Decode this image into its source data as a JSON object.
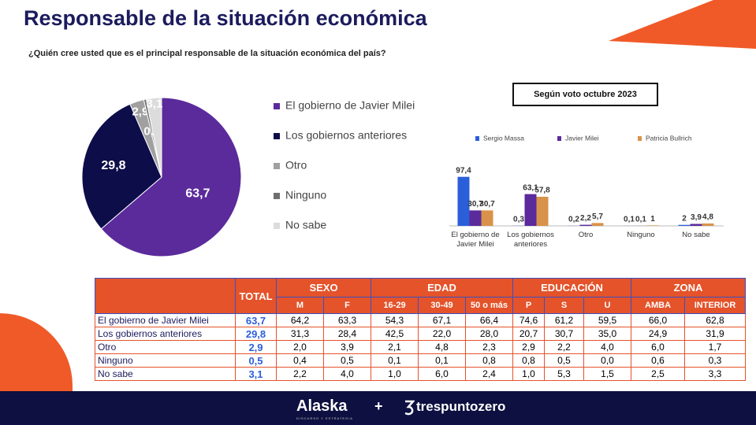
{
  "header": {
    "title": "Responsable de la situación económica",
    "subtitle": "¿Quién cree usted que es el principal responsable de la situación económica del país?"
  },
  "chart_data": [
    {
      "type": "pie",
      "categories": [
        "El gobierno de Javier Milei",
        "Los gobiernos anteriores",
        "Otro",
        "Ninguno",
        "No sabe"
      ],
      "values": [
        63.7,
        29.8,
        2.9,
        0.5,
        3.1
      ],
      "value_labels": [
        "63,7",
        "29,8",
        "2,9",
        "0,5",
        "3,1"
      ],
      "colors": [
        "#5b2a9b",
        "#0d0d4a",
        "#a0a0a0",
        "#6e6e6e",
        "#dcdcdc"
      ]
    },
    {
      "type": "bar",
      "title": "Según voto octubre 2023",
      "categories": [
        "El gobierno de Javier Milei",
        "Los gobiernos anteriores",
        "Otro",
        "Ninguno",
        "No sabe"
      ],
      "series": [
        {
          "name": "Sergio Massa",
          "color": "#2b5fd9",
          "values": [
            97.4,
            0.3,
            0.2,
            0.1,
            2
          ],
          "value_labels": [
            "97,4",
            "0,3",
            "0,2",
            "0,1",
            "2"
          ]
        },
        {
          "name": "Javier Milei",
          "color": "#5b2a9b",
          "values": [
            30.7,
            63.1,
            2.2,
            0.1,
            3.9
          ],
          "value_labels": [
            "30,7",
            "63,1",
            "2,2",
            "0,1",
            "3,9"
          ]
        },
        {
          "name": "Patricia Bullrich",
          "color": "#d9924a",
          "values": [
            30.7,
            57.8,
            5.7,
            1,
            4.8
          ],
          "value_labels": [
            "30,7",
            "57,8",
            "5,7",
            "1",
            "4,8"
          ]
        }
      ]
    }
  ],
  "table": {
    "groups": [
      "TOTAL",
      "SEXO",
      "EDAD",
      "EDUCACIÓN",
      "ZONA"
    ],
    "subheaders": [
      "M",
      "F",
      "16-29",
      "30-49",
      "50 o más",
      "P",
      "S",
      "U",
      "AMBA",
      "INTERIOR"
    ],
    "rows": [
      [
        "El gobierno de Javier Milei",
        "63,7",
        "64,2",
        "63,3",
        "54,3",
        "67,1",
        "66,4",
        "74,6",
        "61,2",
        "59,5",
        "66,0",
        "62,8"
      ],
      [
        "Los gobiernos anteriores",
        "29,8",
        "31,3",
        "28,4",
        "42,5",
        "22,0",
        "28,0",
        "20,7",
        "30,7",
        "35,0",
        "24,9",
        "31,9"
      ],
      [
        "Otro",
        "2,9",
        "2,0",
        "3,9",
        "2,1",
        "4,8",
        "2,3",
        "2,9",
        "2,2",
        "4,0",
        "6,0",
        "1,7"
      ],
      [
        "Ninguno",
        "0,5",
        "0,4",
        "0,5",
        "0,1",
        "0,1",
        "0,8",
        "0,8",
        "0,5",
        "0,0",
        "0,6",
        "0,3"
      ],
      [
        "No sabe",
        "3,1",
        "2,2",
        "4,0",
        "1,0",
        "6,0",
        "2,4",
        "1,0",
        "5,3",
        "1,5",
        "2,5",
        "3,3"
      ]
    ]
  },
  "footer": {
    "brand_left": "Alaska",
    "brand_left_tagline": "DISCURSO Y ESTRATEGIA",
    "plus": "+",
    "brand_right": "trespuntozero"
  }
}
